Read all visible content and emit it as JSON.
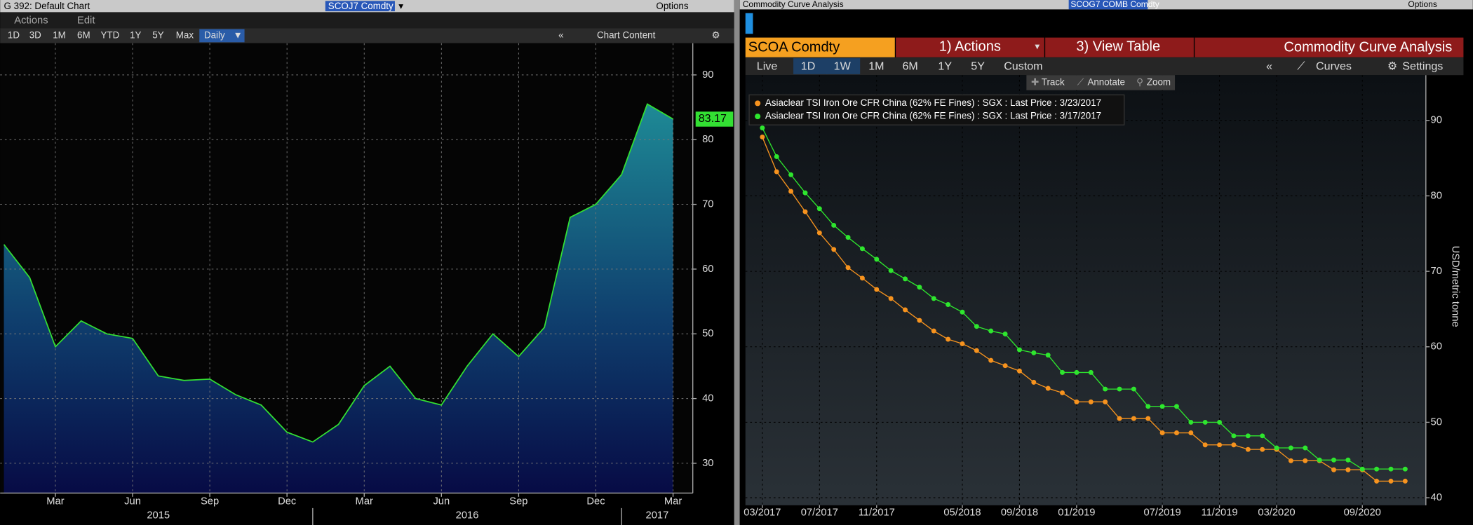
{
  "left_panel": {
    "title": "G 392: Default Chart",
    "ticker": "SCOJ7 Comdty",
    "options": "Options",
    "menu": [
      "Actions",
      "Edit"
    ],
    "ranges": [
      "1D",
      "3D",
      "1M",
      "6M",
      "YTD",
      "1Y",
      "5Y",
      "Max"
    ],
    "frequency": "Daily",
    "chart_content": "Chart Content"
  },
  "right_panel": {
    "title": "Commodity Curve Analysis",
    "ticker": "SCOG7 COMB Comdty",
    "options": "Options",
    "security": "SCOA Comdty",
    "actions": "1) Actions",
    "view_table": "3) View Table",
    "heading": "Commodity Curve Analysis",
    "ranges": [
      "Live",
      "1D",
      "1W",
      "1M",
      "6M",
      "1Y",
      "5Y",
      "Custom"
    ],
    "curves": "Curves",
    "settings": "Settings",
    "tools": [
      "Track",
      "Annotate",
      "Zoom"
    ]
  },
  "chart_data": [
    {
      "type": "area",
      "color": "#33e033",
      "x": [
        "2015-01",
        "2015-02",
        "2015-03",
        "2015-04",
        "2015-05",
        "2015-06",
        "2015-07",
        "2015-08",
        "2015-09",
        "2015-10",
        "2015-11",
        "2015-12",
        "2016-01",
        "2016-02",
        "2016-03",
        "2016-04",
        "2016-05",
        "2016-06",
        "2016-07",
        "2016-08",
        "2016-09",
        "2016-10",
        "2016-11",
        "2016-12",
        "2017-01",
        "2017-02",
        "2017-03"
      ],
      "values": [
        63.8,
        58.7,
        48,
        52,
        50,
        49.3,
        43.5,
        42.8,
        43,
        40.6,
        39,
        34.8,
        33.3,
        36,
        42,
        45,
        40,
        39,
        45,
        50,
        46.5,
        51,
        68,
        70,
        74.6,
        85.5,
        83.17
      ],
      "xticks": [
        {
          "value": "2015-03",
          "label": "Mar"
        },
        {
          "value": "2015-06",
          "label": "Jun"
        },
        {
          "value": "2015-09",
          "label": "Sep"
        },
        {
          "value": "2015-12",
          "label": "Dec"
        },
        {
          "value": "2016-03",
          "label": "Mar"
        },
        {
          "value": "2016-06",
          "label": "Jun"
        },
        {
          "value": "2016-09",
          "label": "Sep"
        },
        {
          "value": "2016-12",
          "label": "Dec"
        },
        {
          "value": "2017-03",
          "label": "Mar"
        }
      ],
      "x_groups": [
        "2015",
        "2016",
        "2017"
      ],
      "ylim": [
        25.4,
        94.9
      ],
      "yticks": [
        30,
        40,
        50,
        60,
        70,
        80,
        90
      ],
      "grid": true
    },
    {
      "type": "line",
      "y_label": "USD/metric tonne",
      "x": [
        "03/2017",
        "04/2017",
        "05/2017",
        "06/2017",
        "07/2017",
        "08/2017",
        "09/2017",
        "10/2017",
        "11/2017",
        "12/2017",
        "01/2018",
        "02/2018",
        "03/2018",
        "04/2018",
        "05/2018",
        "06/2018",
        "07/2018",
        "08/2018",
        "09/2018",
        "10/2018",
        "11/2018",
        "12/2018",
        "01/2019",
        "02/2019",
        "03/2019",
        "04/2019",
        "05/2019",
        "06/2019",
        "07/2019",
        "08/2019",
        "09/2019",
        "10/2019",
        "11/2019",
        "12/2019",
        "01/2020",
        "02/2020",
        "03/2020",
        "04/2020",
        "05/2020",
        "06/2020",
        "07/2020",
        "08/2020",
        "09/2020",
        "10/2020",
        "11/2020",
        "12/2020"
      ],
      "series": [
        {
          "name": "Asiaclear TSI Iron Ore CFR China (62% FE Fines) : SGX : Last Price : 3/23/2017",
          "color": "#f7931e",
          "values": [
            87.8,
            83.2,
            80.6,
            77.9,
            75.1,
            72.9,
            70.5,
            69.1,
            67.6,
            66.4,
            64.9,
            63.5,
            62.1,
            61,
            60.4,
            59.5,
            58.2,
            57.5,
            56.8,
            55.3,
            54.5,
            53.9,
            52.7,
            52.7,
            52.7,
            50.5,
            50.5,
            50.5,
            48.6,
            48.6,
            48.6,
            47,
            47,
            47,
            46.4,
            46.4,
            46.4,
            44.9,
            44.9,
            44.9,
            43.7,
            43.7,
            43.7,
            42.2,
            42.2,
            42.2
          ]
        },
        {
          "name": "Asiaclear TSI Iron Ore CFR China (62% FE Fines) : SGX : Last Price : 3/17/2017",
          "color": "#2ee62e",
          "values": [
            89,
            85.2,
            82.8,
            80.4,
            78.3,
            76.1,
            74.5,
            73,
            71.6,
            70.1,
            69,
            67.9,
            66.4,
            65.6,
            64.6,
            62.7,
            62.1,
            61.7,
            59.6,
            59.2,
            58.9,
            56.6,
            56.6,
            56.6,
            54.4,
            54.4,
            54.4,
            52.1,
            52.1,
            52.1,
            50,
            50,
            50,
            48.2,
            48.2,
            48.2,
            46.6,
            46.6,
            46.6,
            45,
            45,
            45,
            43.8,
            43.8,
            43.8,
            43.8
          ]
        }
      ],
      "xticks": [
        "03/2017",
        "07/2017",
        "11/2017",
        "05/2018",
        "09/2018",
        "01/2019",
        "07/2019",
        "11/2019",
        "03/2020",
        "09/2020"
      ],
      "ylim": [
        39,
        96
      ],
      "yticks": [
        40,
        50,
        60,
        70,
        80,
        90
      ],
      "grid": true
    }
  ]
}
